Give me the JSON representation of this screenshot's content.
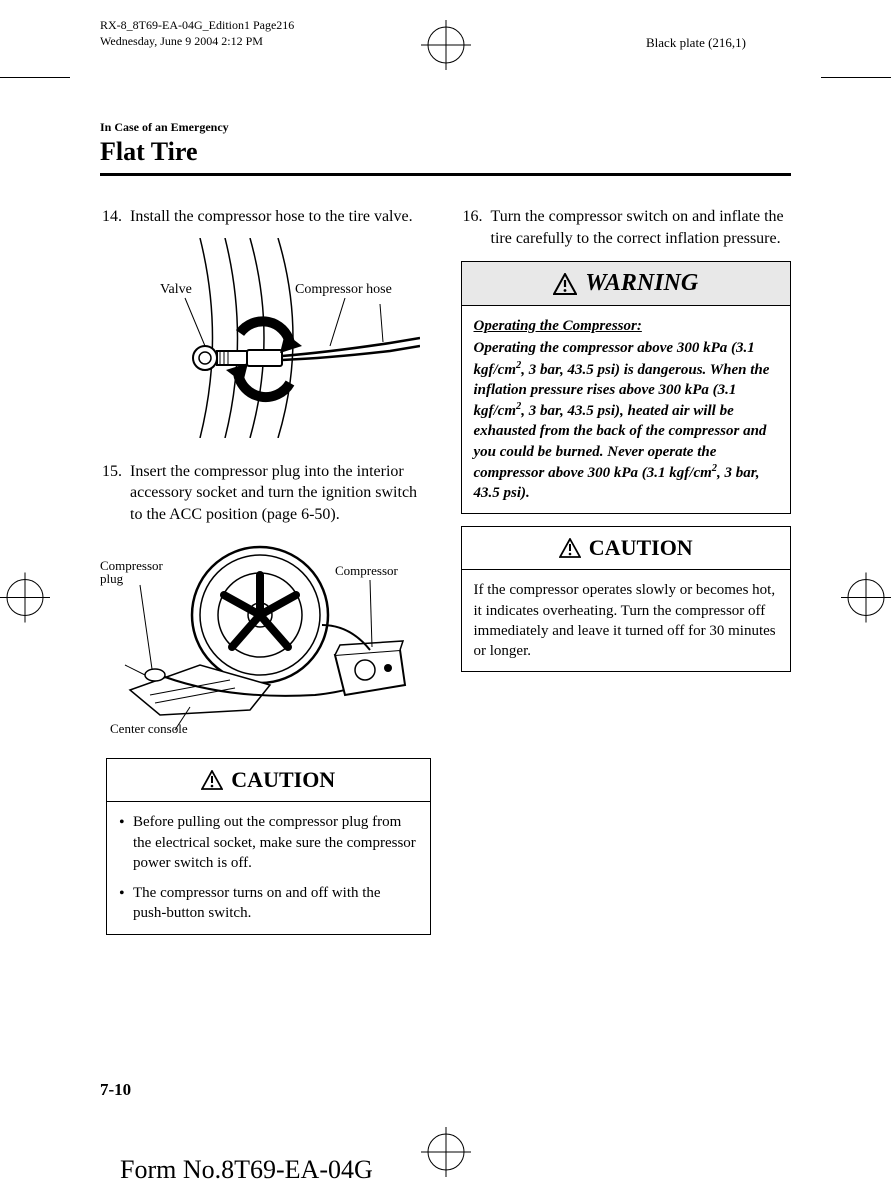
{
  "meta": {
    "doc_id": "RX-8_8T69-EA-04G_Edition1 Page216",
    "timestamp": "Wednesday, June 9 2004 2:12 PM",
    "plate": "Black plate (216,1)"
  },
  "header": {
    "section": "In Case of an Emergency",
    "title": "Flat Tire"
  },
  "steps": {
    "s14": {
      "num": "14.",
      "text": "Install the compressor hose to the tire valve."
    },
    "s15": {
      "num": "15.",
      "text": "Insert the compressor plug into the interior accessory socket and turn the ignition switch to the ACC position (page 6-50)."
    },
    "s16": {
      "num": "16.",
      "text": "Turn the compressor switch on and inflate the tire carefully to the correct inflation pressure."
    }
  },
  "fig1": {
    "valve_label": "Valve",
    "hose_label": "Compressor hose"
  },
  "fig2": {
    "plug_label": "Compressor plug",
    "compressor_label": "Compressor",
    "console_label": "Center console"
  },
  "caution1": {
    "heading": "CAUTION",
    "bullet1": "Before pulling out the compressor plug from the electrical socket, make sure the compressor power switch is off.",
    "bullet2": "The compressor turns on and off with the push-button switch."
  },
  "warning": {
    "heading": "WARNING",
    "sub": "Operating the Compressor:",
    "body_html": "Operating the compressor above 300 kPa (3.1 kgf/cm<sup>2</sup>, 3 bar, 43.5 psi) is dangerous. When the inflation pressure rises above 300 kPa (3.1 kgf/cm<sup>2</sup>, 3 bar, 43.5 psi), heated air will be exhausted from the back of the compressor and you could be burned. Never operate the compressor above 300 kPa (3.1 kgf/cm<sup>2</sup>, 3 bar, 43.5 psi)."
  },
  "caution2": {
    "heading": "CAUTION",
    "body": "If the compressor operates slowly or becomes hot, it indicates overheating. Turn the compressor off immediately and leave it turned off for 30 minutes or longer."
  },
  "footer": {
    "page_num": "7-10",
    "form_no": "Form No.8T69-EA-04G"
  },
  "colors": {
    "text": "#000000",
    "bg": "#ffffff",
    "shade": "#e8e8e8"
  }
}
